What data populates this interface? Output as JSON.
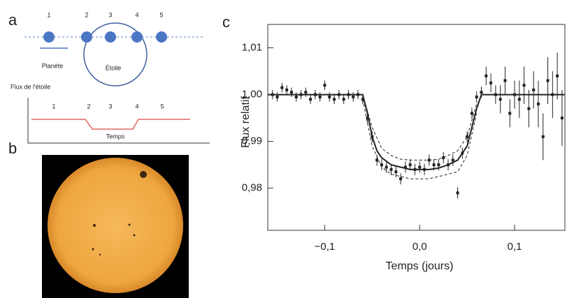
{
  "panels": {
    "a": "a",
    "b": "b",
    "c": "c"
  },
  "diagram": {
    "positions": [
      "1",
      "2",
      "3",
      "4",
      "5"
    ],
    "planet": "Planète",
    "star": "Étoile",
    "flux_label": "Flux de l'étoile",
    "curve_positions": [
      "1",
      "2",
      "3",
      "4",
      "5"
    ],
    "time_label": "Temps"
  },
  "chart_data": {
    "type": "scatter",
    "xlabel": "Temps (jours)",
    "ylabel": "Flux relatif",
    "xlim": [
      -0.16,
      0.153
    ],
    "ylim": [
      0.971,
      1.015
    ],
    "xticks": [
      {
        "value": -0.1,
        "label": "−0,1"
      },
      {
        "value": 0,
        "label": "0,0"
      },
      {
        "value": 0.1,
        "label": "0,1"
      }
    ],
    "yticks": [
      {
        "value": 0.98,
        "label": "0,98"
      },
      {
        "value": 0.99,
        "label": "0,99"
      },
      {
        "value": 1.0,
        "label": "1,00"
      },
      {
        "value": 1.01,
        "label": "1,01"
      }
    ],
    "color": "#222222",
    "series": [
      {
        "kind": "model",
        "x": [
          -0.16,
          -0.06,
          -0.055,
          -0.05,
          -0.045,
          -0.04,
          -0.03,
          -0.02,
          -0.01,
          0,
          0.01,
          0.02,
          0.03,
          0.04,
          0.05,
          0.055,
          0.06,
          0.065,
          0.153
        ],
        "values": [
          1.0,
          1.0,
          0.996,
          0.991,
          0.988,
          0.9865,
          0.985,
          0.9845,
          0.984,
          0.984,
          0.984,
          0.9843,
          0.985,
          0.986,
          0.989,
          0.993,
          0.997,
          1.0,
          1.0
        ]
      },
      {
        "kind": "bound",
        "x": [
          -0.06,
          -0.05,
          -0.04,
          -0.03,
          -0.02,
          -0.01,
          0,
          0.01,
          0.02,
          0.03,
          0.04,
          0.05,
          0.06
        ],
        "values": [
          1.0,
          0.993,
          0.9885,
          0.987,
          0.9862,
          0.986,
          0.986,
          0.986,
          0.9862,
          0.987,
          0.988,
          0.991,
          0.998
        ]
      },
      {
        "kind": "bound",
        "x": [
          -0.06,
          -0.05,
          -0.04,
          -0.03,
          -0.02,
          -0.01,
          0,
          0.01,
          0.02,
          0.03,
          0.04,
          0.05,
          0.06
        ],
        "values": [
          0.999,
          0.989,
          0.9845,
          0.983,
          0.9825,
          0.982,
          0.982,
          0.982,
          0.9825,
          0.983,
          0.9835,
          0.987,
          0.996
        ]
      },
      {
        "kind": "points",
        "x": [
          -0.155,
          -0.15,
          -0.145,
          -0.14,
          -0.135,
          -0.13,
          -0.125,
          -0.12,
          -0.115,
          -0.11,
          -0.105,
          -0.1,
          -0.095,
          -0.09,
          -0.085,
          -0.08,
          -0.075,
          -0.07,
          -0.065,
          -0.06,
          -0.055,
          -0.05,
          -0.045,
          -0.04,
          -0.035,
          -0.03,
          -0.025,
          -0.02,
          -0.015,
          -0.01,
          -0.005,
          0,
          0.005,
          0.01,
          0.015,
          0.02,
          0.025,
          0.03,
          0.035,
          0.04,
          0.045,
          0.05,
          0.055,
          0.06,
          0.065,
          0.07,
          0.075,
          0.08,
          0.085,
          0.09,
          0.095,
          0.1,
          0.105,
          0.11,
          0.115,
          0.12,
          0.125,
          0.13,
          0.135,
          0.14,
          0.145,
          0.15
        ],
        "values": [
          1.0,
          0.9995,
          1.0015,
          1.001,
          1.0005,
          0.9995,
          1.0,
          1.0005,
          0.999,
          1.0,
          0.9995,
          1.002,
          0.9995,
          0.999,
          1.0,
          0.999,
          1.0,
          0.9995,
          1.0,
          0.999,
          0.995,
          0.991,
          0.986,
          0.985,
          0.9845,
          0.984,
          0.9835,
          0.982,
          0.9845,
          0.985,
          0.984,
          0.9845,
          0.984,
          0.986,
          0.985,
          0.985,
          0.9865,
          0.985,
          0.986,
          0.979,
          0.9875,
          0.991,
          0.996,
          0.9995,
          1.0005,
          1.004,
          1.0025,
          1.0,
          0.999,
          1.003,
          0.996,
          1.0,
          0.999,
          1.002,
          0.997,
          1.001,
          0.998,
          0.991,
          1.003,
          1.0,
          1.004,
          0.995
        ],
        "errors": [
          0.001,
          0.001,
          0.001,
          0.001,
          0.001,
          0.001,
          0.001,
          0.001,
          0.001,
          0.001,
          0.001,
          0.001,
          0.001,
          0.001,
          0.001,
          0.001,
          0.001,
          0.001,
          0.001,
          0.001,
          0.0012,
          0.0012,
          0.0012,
          0.0012,
          0.0012,
          0.0012,
          0.0012,
          0.0012,
          0.0012,
          0.0012,
          0.0012,
          0.0012,
          0.0012,
          0.0012,
          0.0012,
          0.0012,
          0.0012,
          0.0012,
          0.0012,
          0.0012,
          0.0012,
          0.0012,
          0.0012,
          0.0012,
          0.0012,
          0.002,
          0.002,
          0.002,
          0.003,
          0.003,
          0.003,
          0.003,
          0.004,
          0.004,
          0.004,
          0.004,
          0.005,
          0.005,
          0.005,
          0.005,
          0.005,
          0.006
        ]
      }
    ]
  }
}
